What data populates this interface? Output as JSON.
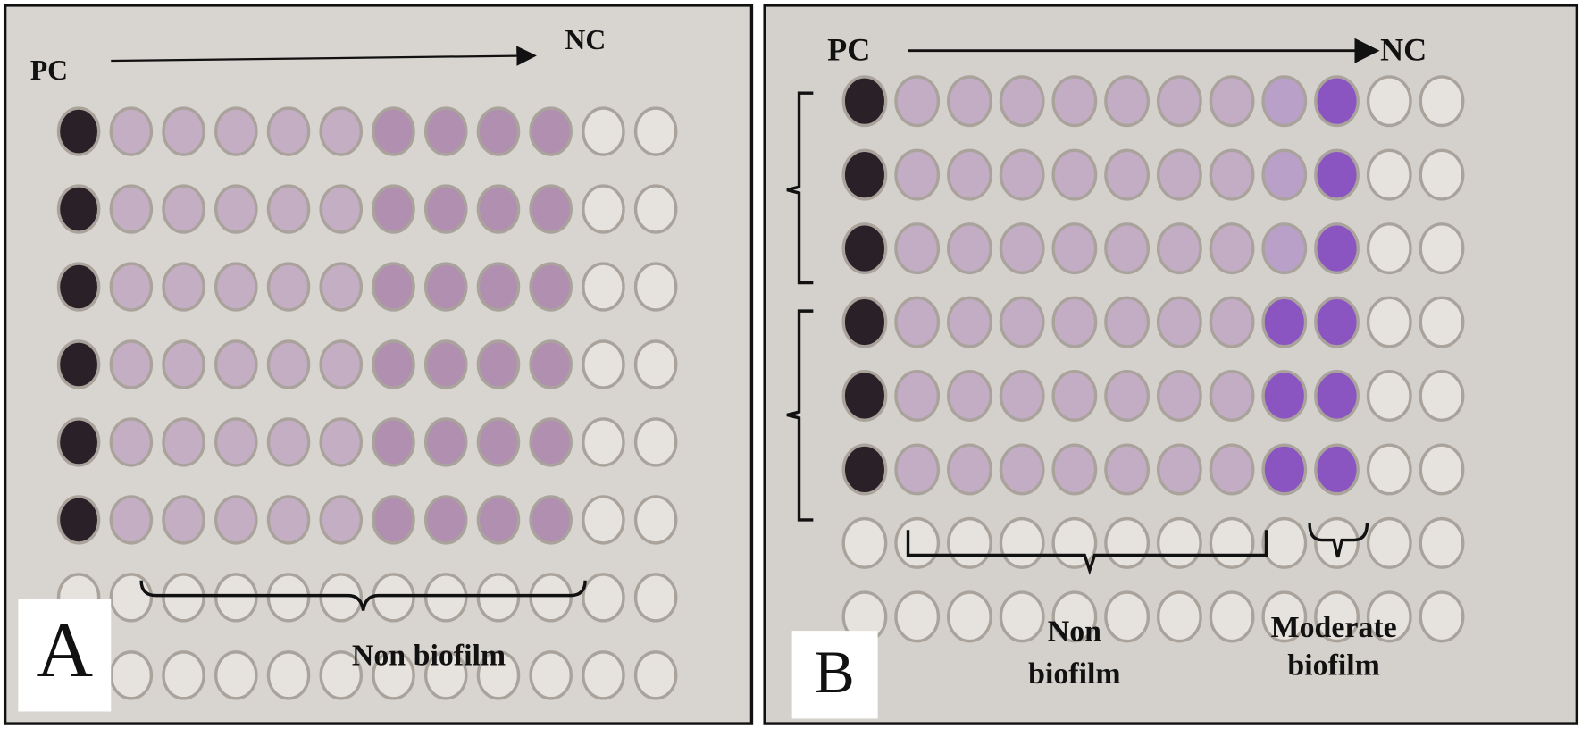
{
  "panels": [
    {
      "label": "A",
      "start": "PC",
      "end": "NC",
      "groups": [
        {
          "lines": [
            "Non biofilm"
          ]
        }
      ]
    },
    {
      "label": "B",
      "start": "PC",
      "end": "NC",
      "groups": [
        {
          "lines": [
            "Non",
            "biofilm"
          ]
        },
        {
          "lines": [
            "Moderate",
            "biofilm"
          ]
        }
      ]
    }
  ]
}
